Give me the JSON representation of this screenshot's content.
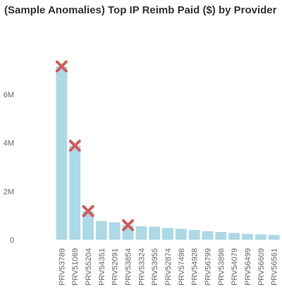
{
  "chart_data": {
    "type": "bar",
    "title": "(Sample Anomalies) Top IP Reimb Paid ($) by Provider",
    "xlabel": "",
    "ylabel": "",
    "categories": [
      "PRV53789",
      "PRV51069",
      "PRV55204",
      "PRV54351",
      "PRV52091",
      "PRV53854",
      "PRV53324",
      "PRV53955",
      "PRV52874",
      "PRV57498",
      "PRV54928",
      "PRV56799",
      "PRV53898",
      "PRV54079",
      "PRV56499",
      "PRV56609",
      "PRV56561"
    ],
    "values": [
      7150000,
      3880000,
      1180000,
      770000,
      720000,
      600000,
      560000,
      540000,
      490000,
      450000,
      400000,
      350000,
      320000,
      280000,
      240000,
      220000,
      200000
    ],
    "anomalies": [
      true,
      true,
      true,
      false,
      false,
      true,
      false,
      false,
      false,
      false,
      false,
      false,
      false,
      false,
      false,
      false,
      false
    ],
    "ylim": [
      0,
      8000000
    ],
    "yticks": [
      0,
      2000000,
      4000000,
      6000000
    ],
    "ytick_labels": [
      "0",
      "2M",
      "4M",
      "6M"
    ],
    "grid": false,
    "bar_color": "#add8e6",
    "anomaly_marker_color": "#cd5c5c"
  }
}
